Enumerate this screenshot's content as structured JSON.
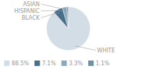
{
  "chart_data": {
    "type": "pie",
    "categories": [
      "WHITE",
      "BLACK",
      "HISPANIC",
      "ASIAN"
    ],
    "values": [
      88.5,
      7.1,
      3.3,
      1.1
    ],
    "value_labels": [
      "88.5%",
      "7.1%",
      "3.3%",
      "1.1%"
    ],
    "colors": [
      "#d3dde6",
      "#4a6f8a",
      "#8aaabf",
      "#7090a8"
    ],
    "legend": "bottom"
  }
}
